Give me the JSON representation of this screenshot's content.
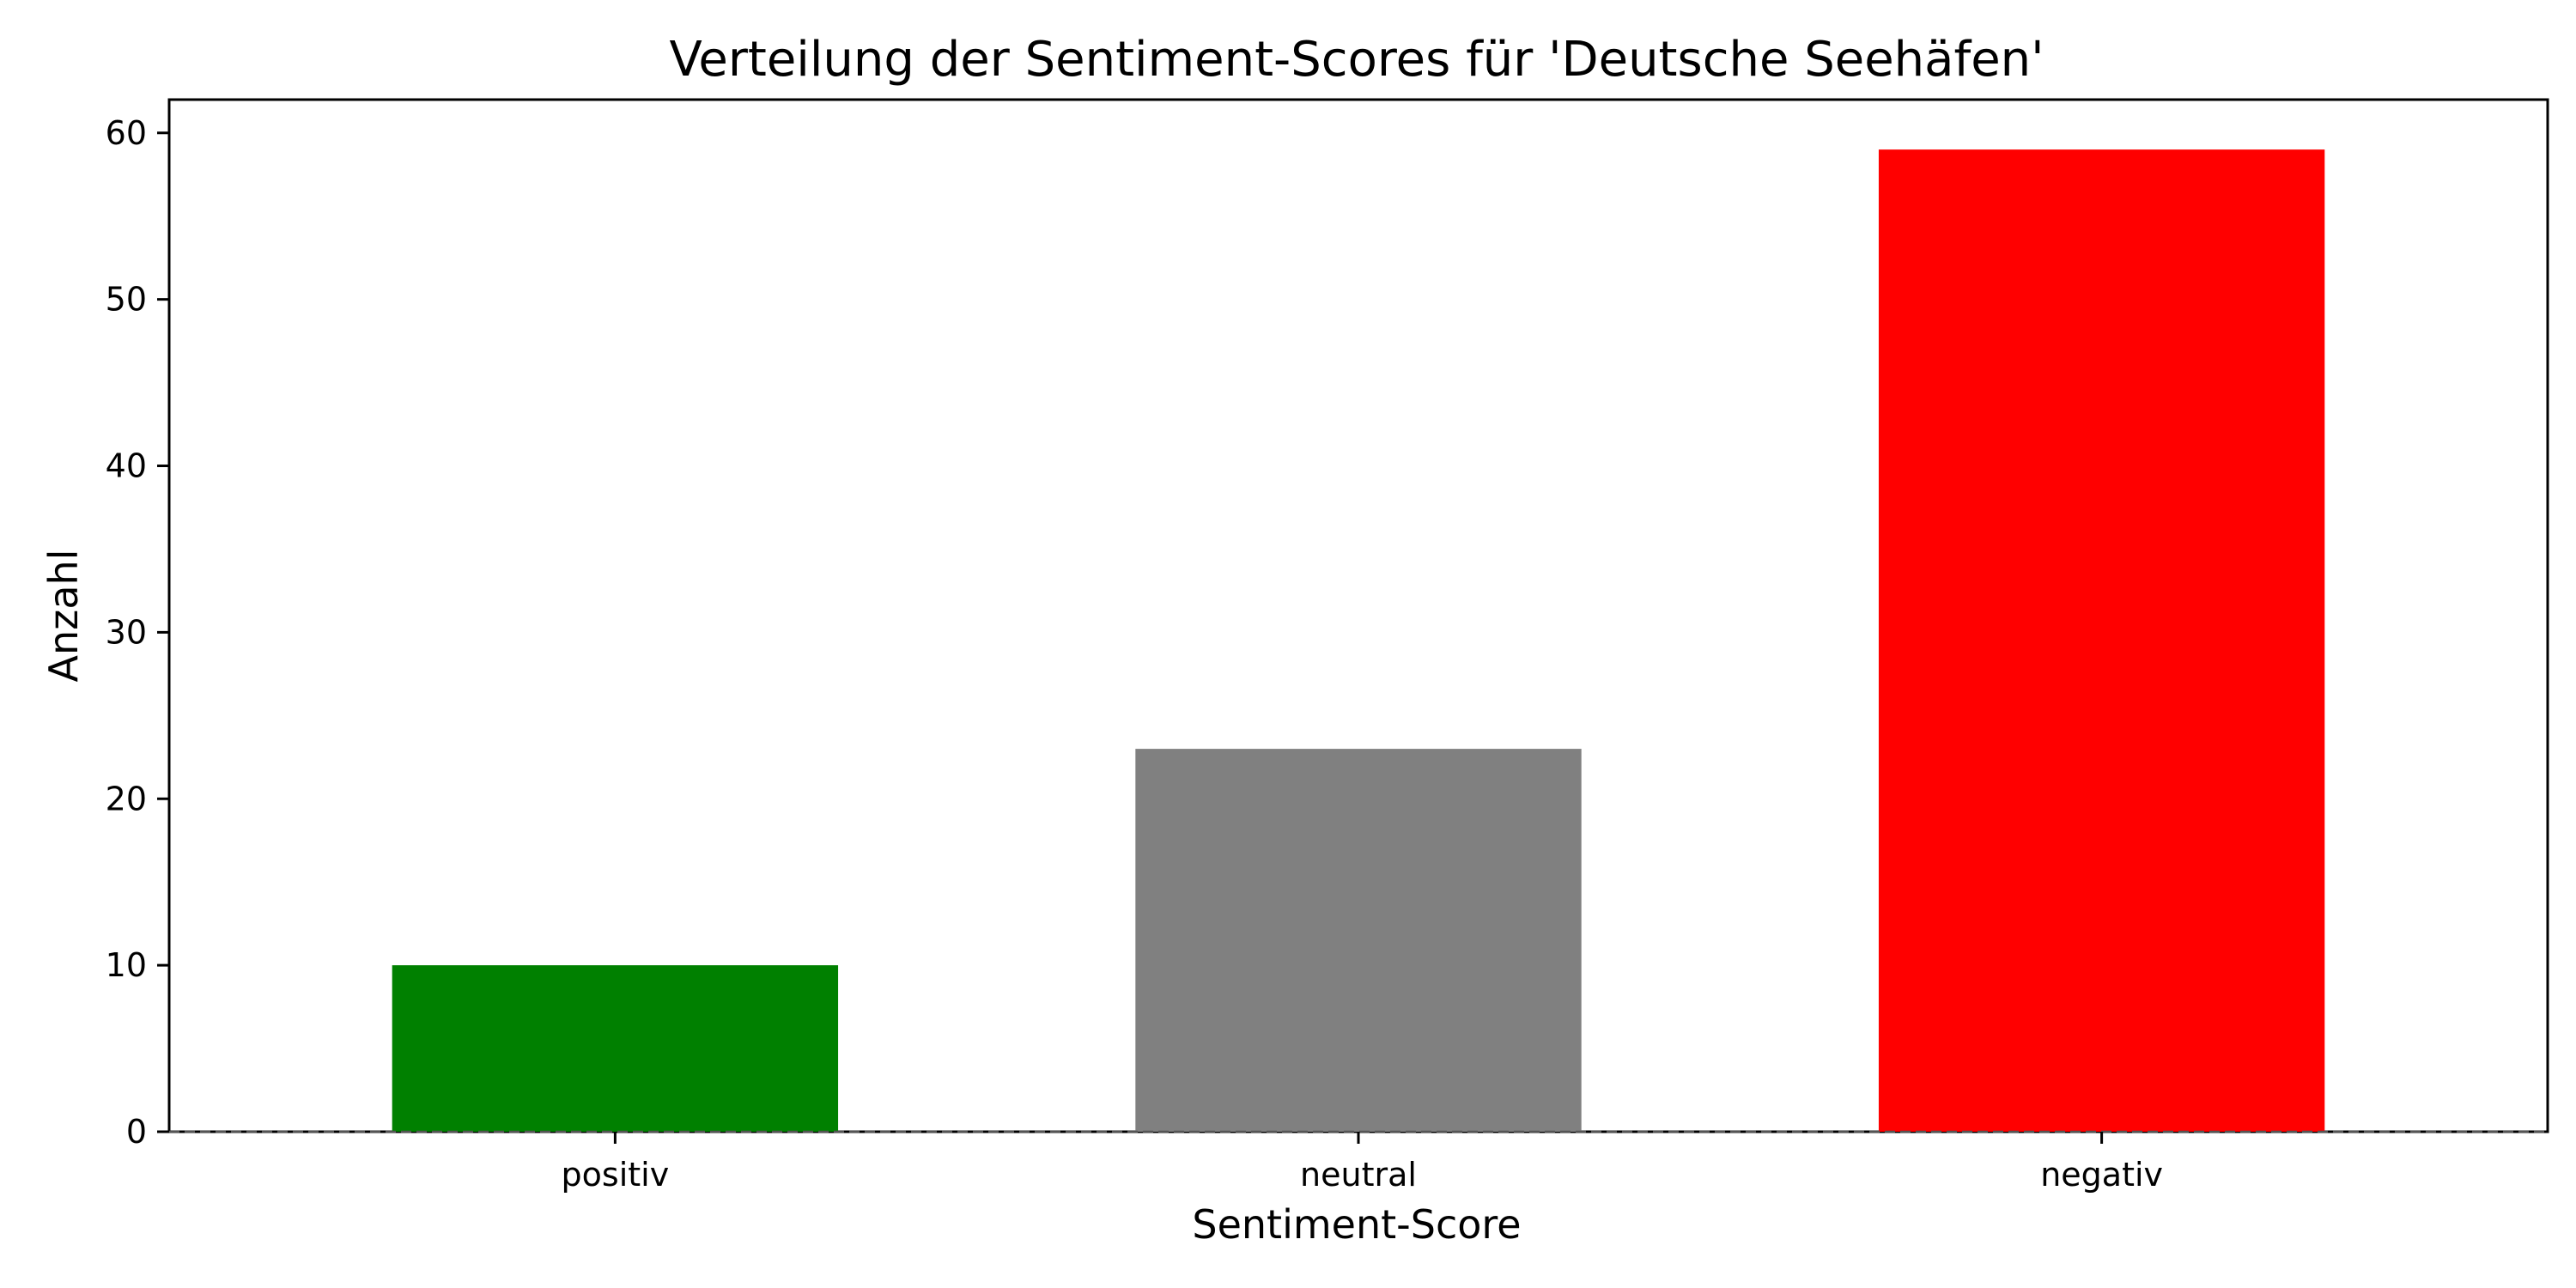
{
  "chart_data": {
    "type": "bar",
    "title": "Verteilung der Sentiment-Scores für 'Deutsche Seehäfen'",
    "xlabel": "Sentiment-Score",
    "ylabel": "Anzahl",
    "categories": [
      "positiv",
      "neutral",
      "negativ"
    ],
    "values": [
      10,
      23,
      59
    ],
    "colors": [
      "#008000",
      "#808080",
      "#ff0000"
    ],
    "ylim": [
      0,
      62
    ],
    "yticks": [
      "0",
      "10",
      "20",
      "30",
      "40",
      "50",
      "60"
    ],
    "grid": false,
    "baseline": {
      "value": 0,
      "style": "dashed"
    }
  }
}
